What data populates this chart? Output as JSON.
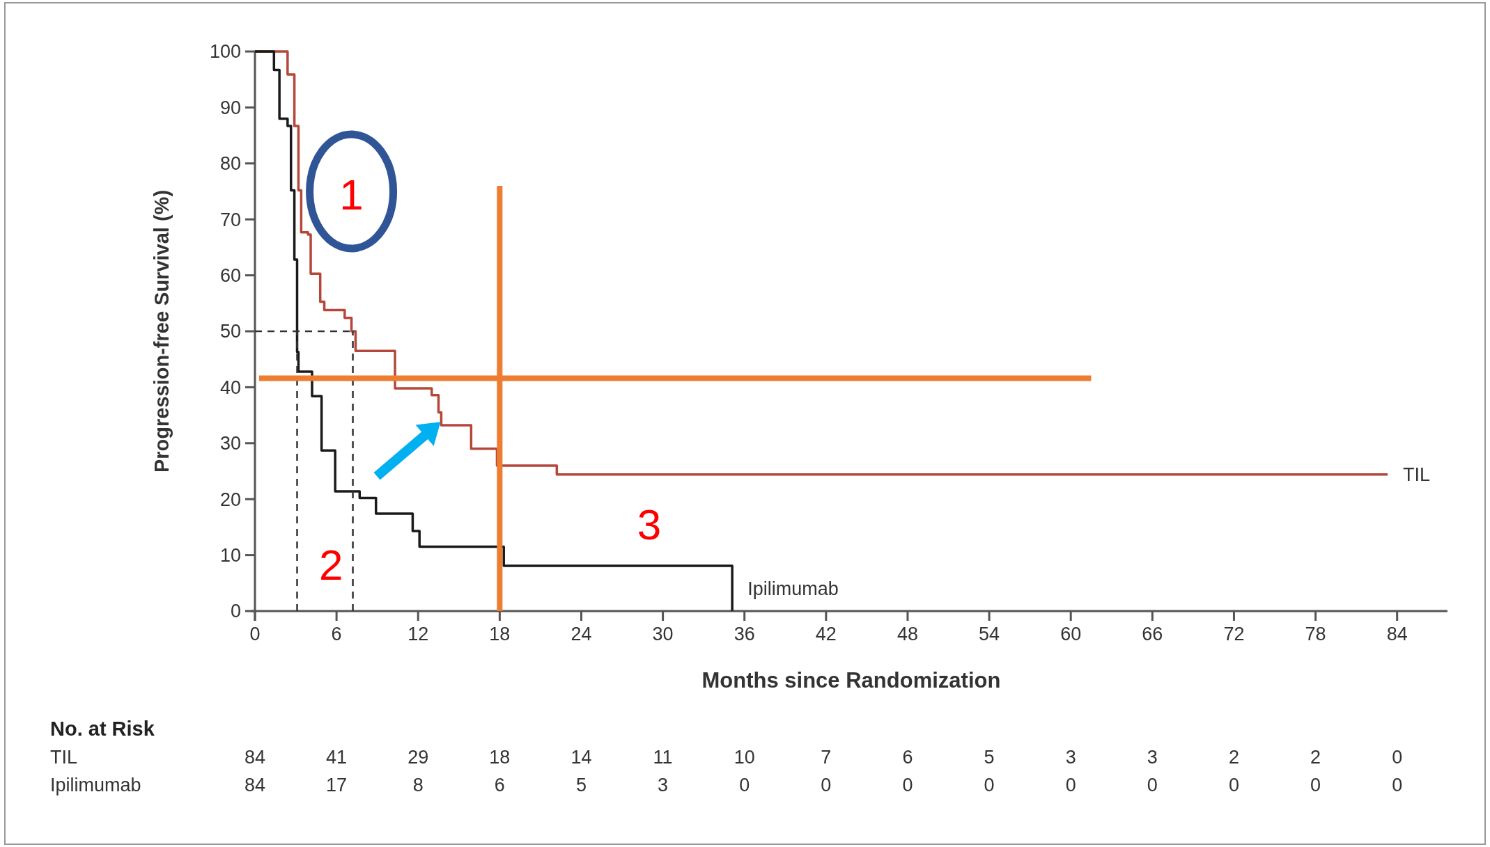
{
  "chart_data": {
    "type": "step",
    "xlabel": "Months since Randomization",
    "ylabel": "Progression-free Survival (%)",
    "xlim": [
      0,
      87.7
    ],
    "ylim": [
      0,
      100
    ],
    "xticks": [
      0,
      6,
      12,
      18,
      24,
      30,
      36,
      42,
      48,
      54,
      60,
      66,
      72,
      78,
      84
    ],
    "yticks": [
      0,
      10,
      20,
      30,
      40,
      50,
      60,
      70,
      80,
      90,
      100
    ],
    "grid": false,
    "legend": false,
    "marker": "none",
    "series": [
      {
        "name": "TIL",
        "color": "#b5473a",
        "x": [
          0,
          1.6,
          2.4,
          2.9,
          3.2,
          3.4,
          3.9,
          4.1,
          4.8,
          5.1,
          6.0,
          6.6,
          7.1,
          7.4,
          9.5,
          10.3,
          12.5,
          13.0,
          13.5,
          13.7,
          15.4,
          15.9,
          17.5,
          17.8,
          22.2,
          83.3
        ],
        "values": [
          100,
          100,
          95.9,
          86.7,
          75.2,
          67.7,
          67.3,
          60.3,
          55.3,
          53.8,
          53.8,
          52.4,
          50,
          46.5,
          46.5,
          39.8,
          39.8,
          38.6,
          35.5,
          33.2,
          33.2,
          29.0,
          29.0,
          26.0,
          24.4,
          24.4
        ]
      },
      {
        "name": "Ipilimumab",
        "color": "#1a1a1a",
        "x": [
          0,
          1.0,
          1.4,
          1.8,
          2.4,
          2.65,
          2.9,
          3.1,
          3.2,
          4.2,
          4.9,
          5.6,
          5.9,
          7.4,
          7.7,
          8.4,
          8.9,
          11.2,
          11.6,
          12.1,
          17.8,
          18.3,
          35.1,
          35.1
        ],
        "values": [
          100,
          100,
          96.7,
          88,
          86.7,
          75.2,
          62.8,
          46.3,
          42.8,
          38.4,
          28.7,
          28.7,
          21.4,
          21.4,
          20.2,
          20.2,
          17.4,
          17.4,
          14.3,
          11.5,
          11.5,
          8.1,
          8.1,
          0
        ]
      },
      {
        "type": "line",
        "line_style": "dashed",
        "color": "#333333",
        "x": [
          0,
          7.2
        ],
        "values": [
          50,
          50
        ]
      },
      {
        "type": "line",
        "line_style": "dashed",
        "color": "#333333",
        "x": [
          3.1,
          3.1
        ],
        "values": [
          0,
          50
        ]
      },
      {
        "type": "line",
        "line_style": "dashed",
        "color": "#333333",
        "x": [
          7.2,
          7.2
        ],
        "values": [
          0,
          50
        ]
      },
      {
        "type": "line",
        "line_style": "solid",
        "color": "#ed7d31",
        "x": [
          0.3,
          61.5
        ],
        "values": [
          41.6,
          41.6
        ]
      },
      {
        "type": "line",
        "line_style": "solid",
        "color": "#ed7d31",
        "x": [
          18,
          18
        ],
        "values": [
          0,
          76
        ]
      }
    ],
    "annotations": [
      "1",
      "2",
      "3",
      "No. at Risk",
      "TIL",
      "84",
      "41",
      "29",
      "18",
      "14",
      "11",
      "10",
      "7",
      "6",
      "5",
      "3",
      "3",
      "2",
      "2",
      "0",
      "Ipilimumab",
      "84",
      "17",
      "8",
      "6",
      "5",
      "3",
      "0",
      "0",
      "0",
      "0",
      "0",
      "0",
      "0",
      "0",
      "0"
    ]
  }
}
